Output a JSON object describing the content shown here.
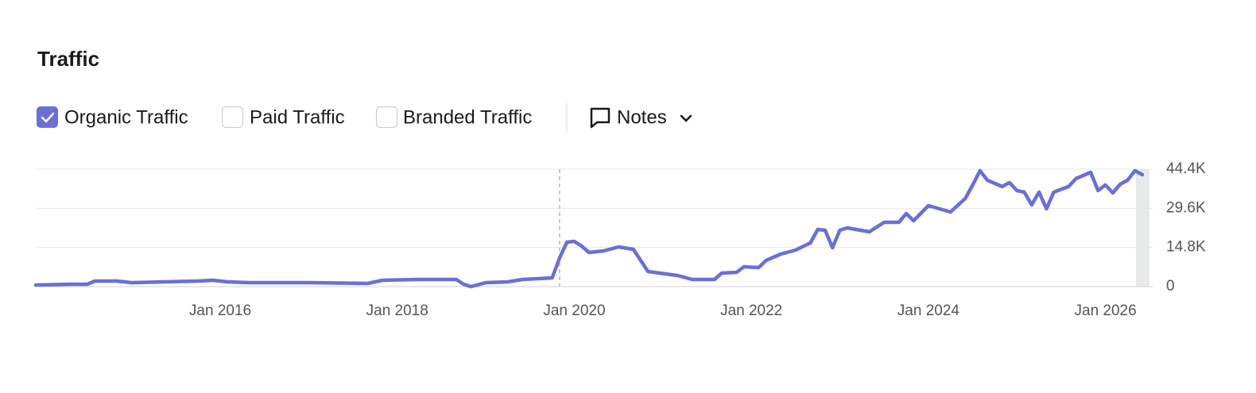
{
  "chart_data": {
    "type": "line",
    "title": "Traffic",
    "x": [
      "2013-12",
      "2014-05",
      "2014-07",
      "2014-08",
      "2014-11",
      "2015-01",
      "2015-10",
      "2015-12",
      "2016-02",
      "2016-05",
      "2017-01",
      "2017-09",
      "2017-11",
      "2018-04",
      "2018-09",
      "2018-10",
      "2018-11",
      "2019-01",
      "2019-04",
      "2019-06",
      "2019-10",
      "2019-11",
      "2019-12",
      "2020-01",
      "2020-02",
      "2020-03",
      "2020-05",
      "2020-07",
      "2020-09",
      "2020-11",
      "2021-03",
      "2021-05",
      "2021-08",
      "2021-09",
      "2021-11",
      "2021-12",
      "2022-02",
      "2022-03",
      "2022-05",
      "2022-07",
      "2022-09",
      "2022-10",
      "2022-11",
      "2022-12",
      "2023-01",
      "2023-02",
      "2023-05",
      "2023-07",
      "2023-09",
      "2023-10",
      "2023-11",
      "2024-01",
      "2024-04",
      "2024-06",
      "2024-07",
      "2024-08",
      "2024-09",
      "2024-11",
      "2024-12",
      "2025-01",
      "2025-02",
      "2025-03",
      "2025-04",
      "2025-05",
      "2025-06",
      "2025-08",
      "2025-09",
      "2025-11",
      "2025-12",
      "2026-01",
      "2026-02",
      "2026-03",
      "2026-04",
      "2026-05",
      "2026-06"
    ],
    "series": [
      {
        "name": "Organic Traffic",
        "color": "#6b6fd6",
        "checked": true,
        "values": [
          600,
          900,
          900,
          2100,
          2100,
          1500,
          2100,
          2400,
          1800,
          1500,
          1500,
          1200,
          2400,
          2700,
          2700,
          900,
          0,
          1500,
          1800,
          2700,
          3300,
          10800,
          16800,
          17100,
          15300,
          12900,
          13500,
          15000,
          14100,
          5700,
          4200,
          2700,
          2700,
          5100,
          5400,
          7500,
          7200,
          9900,
          12300,
          13800,
          16500,
          21600,
          21300,
          14700,
          21300,
          22200,
          20700,
          24300,
          24300,
          27600,
          24900,
          30600,
          28200,
          33300,
          38400,
          43800,
          40200,
          37800,
          39300,
          36300,
          35700,
          30900,
          35700,
          29400,
          35700,
          37800,
          40800,
          43200,
          36300,
          38400,
          35400,
          38700,
          40200,
          43800,
          42300
        ]
      }
    ],
    "xlim": [
      "2013-12",
      "2026-06"
    ],
    "xticks": [
      {
        "value": "2016-01",
        "label": "Jan 2016"
      },
      {
        "value": "2018-01",
        "label": "Jan 2018"
      },
      {
        "value": "2020-01",
        "label": "Jan 2020"
      },
      {
        "value": "2022-01",
        "label": "Jan 2022"
      },
      {
        "value": "2024-01",
        "label": "Jan 2024"
      },
      {
        "value": "2026-01",
        "label": "Jan 2026"
      }
    ],
    "ylim": [
      0,
      44400
    ],
    "yticks": [
      0,
      {
        "value": 14800,
        "label": "14.8K"
      },
      {
        "value": 29600,
        "label": "29.6K"
      },
      {
        "value": 44400,
        "label": "44.4K"
      }
    ],
    "grid": true,
    "note_markers": [
      "2019-11"
    ]
  },
  "controls": {
    "toggles": [
      {
        "label": "Paid Traffic",
        "checked": false
      },
      {
        "label": "Branded Traffic",
        "checked": false
      }
    ],
    "notes": "Notes"
  }
}
